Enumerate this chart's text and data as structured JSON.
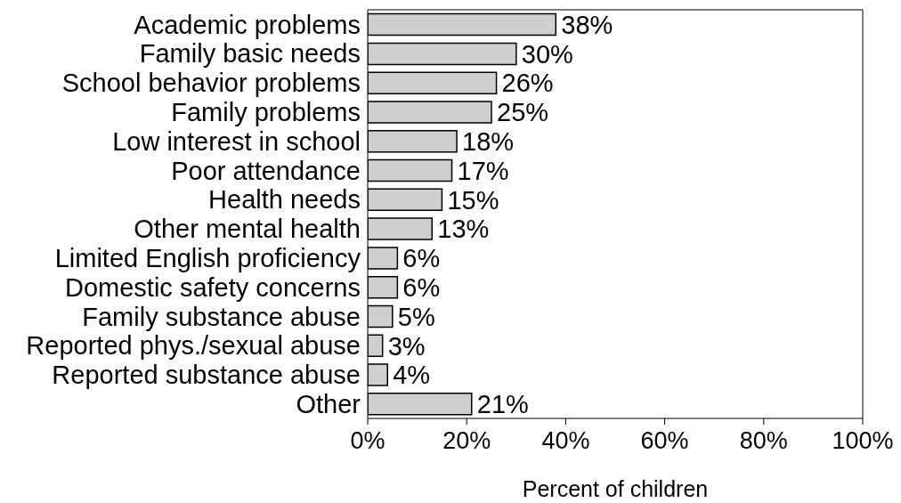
{
  "chart_data": {
    "type": "bar",
    "orientation": "horizontal",
    "xlabel": "Percent of children",
    "categories": [
      "Academic problems",
      "Family basic needs",
      "School behavior problems",
      "Family problems",
      "Low interest in school",
      "Poor attendance",
      "Health needs",
      "Other mental health",
      "Limited English proficiency",
      "Domestic safety concerns",
      "Family substance abuse",
      "Reported phys./sexual abuse",
      "Reported substance abuse",
      "Other"
    ],
    "values": [
      38,
      30,
      26,
      25,
      18,
      17,
      15,
      13,
      6,
      6,
      5,
      3,
      4,
      21
    ],
    "value_labels": [
      "38%",
      "30%",
      "26%",
      "25%",
      "18%",
      "17%",
      "15%",
      "13%",
      "6%",
      "6%",
      "5%",
      "3%",
      "4%",
      "21%"
    ],
    "color": "#cfcfcf",
    "xlim": [
      0,
      100
    ],
    "xticks": [
      {
        "value": 0,
        "label": "0%"
      },
      {
        "value": 20,
        "label": "20%"
      },
      {
        "value": 40,
        "label": "40%"
      },
      {
        "value": 60,
        "label": "60%"
      },
      {
        "value": 80,
        "label": "80%"
      },
      {
        "value": 100,
        "label": "100%"
      }
    ],
    "grid": false
  }
}
